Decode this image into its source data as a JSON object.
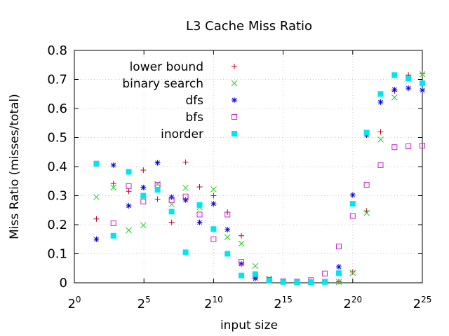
{
  "chart_data": {
    "type": "scatter",
    "title": "L3 Cache Miss Ratio",
    "xlabel": "input size",
    "ylabel": "Miss Ratio (misses/total)",
    "x_scale": "log2",
    "x_ticks": [
      {
        "base": "2",
        "exp": "0"
      },
      {
        "base": "2",
        "exp": "5"
      },
      {
        "base": "2",
        "exp": "10"
      },
      {
        "base": "2",
        "exp": "15"
      },
      {
        "base": "2",
        "exp": "20"
      },
      {
        "base": "2",
        "exp": "25"
      }
    ],
    "y_ticks": [
      "0",
      "0.1",
      "0.2",
      "0.3",
      "0.4",
      "0.5",
      "0.6",
      "0.7",
      "0.8"
    ],
    "xlim": [
      1,
      33554432
    ],
    "ylim": [
      0,
      0.8
    ],
    "grid": true,
    "legend_position": "top-right",
    "series": [
      {
        "name": "lower bound",
        "color": "#c0001f",
        "marker": "plus",
        "points": [
          [
            3,
            0.22
          ],
          [
            7,
            0.342
          ],
          [
            15,
            0.315
          ],
          [
            31,
            0.388
          ],
          [
            63,
            0.288
          ],
          [
            127,
            0.208
          ],
          [
            255,
            0.415
          ],
          [
            511,
            0.33
          ],
          [
            1023,
            0.3
          ],
          [
            2047,
            0.243
          ],
          [
            4095,
            0.162
          ],
          [
            8191,
            0.015
          ],
          [
            16383,
            0.007
          ],
          [
            32767,
            0.004
          ],
          [
            65535,
            0.003
          ],
          [
            131071,
            0.003
          ],
          [
            262143,
            0.004
          ],
          [
            524287,
            0.004
          ],
          [
            1048575,
            0.037
          ],
          [
            2097151,
            0.247
          ],
          [
            4194303,
            0.52
          ],
          [
            8388607,
            0.66
          ],
          [
            16777215,
            0.715
          ],
          [
            33554431,
            0.72
          ]
        ]
      },
      {
        "name": "binary search",
        "color": "#22cc22",
        "marker": "x",
        "points": [
          [
            3,
            0.295
          ],
          [
            7,
            0.328
          ],
          [
            15,
            0.181
          ],
          [
            31,
            0.198
          ],
          [
            63,
            0.34
          ],
          [
            127,
            0.27
          ],
          [
            255,
            0.327
          ],
          [
            511,
            0.26
          ],
          [
            1023,
            0.322
          ],
          [
            2047,
            0.157
          ],
          [
            4095,
            0.135
          ],
          [
            8191,
            0.058
          ],
          [
            16383,
            0.015
          ],
          [
            32767,
            0.005
          ],
          [
            65535,
            0.003
          ],
          [
            131071,
            0.003
          ],
          [
            262143,
            0.004
          ],
          [
            524287,
            0.003
          ],
          [
            1048575,
            0.034
          ],
          [
            2097151,
            0.24
          ],
          [
            4194303,
            0.493
          ],
          [
            8388607,
            0.638
          ],
          [
            16777215,
            0.707
          ],
          [
            33554431,
            0.718
          ]
        ]
      },
      {
        "name": "dfs",
        "color": "#0000dd",
        "marker": "star",
        "points": [
          [
            3,
            0.15
          ],
          [
            7,
            0.405
          ],
          [
            15,
            0.265
          ],
          [
            31,
            0.328
          ],
          [
            63,
            0.413
          ],
          [
            127,
            0.295
          ],
          [
            255,
            0.285
          ],
          [
            511,
            0.208
          ],
          [
            1023,
            0.272
          ],
          [
            2047,
            0.183
          ],
          [
            4095,
            0.065
          ],
          [
            8191,
            0.015
          ],
          [
            16383,
            0.008
          ],
          [
            32767,
            0.004
          ],
          [
            65535,
            0.003
          ],
          [
            131071,
            0.003
          ],
          [
            262143,
            0.004
          ],
          [
            524287,
            0.055
          ],
          [
            1048575,
            0.302
          ],
          [
            2097151,
            0.508
          ],
          [
            4194303,
            0.622
          ],
          [
            8388607,
            0.665
          ],
          [
            16777215,
            0.67
          ],
          [
            33554431,
            0.663
          ]
        ]
      },
      {
        "name": "bfs",
        "color": "#cc22cc",
        "marker": "open-square",
        "points": [
          [
            3,
            0.41
          ],
          [
            7,
            0.205
          ],
          [
            15,
            0.333
          ],
          [
            31,
            0.28
          ],
          [
            63,
            0.337
          ],
          [
            127,
            0.285
          ],
          [
            255,
            0.297
          ],
          [
            511,
            0.235
          ],
          [
            1023,
            0.15
          ],
          [
            2047,
            0.235
          ],
          [
            4095,
            0.072
          ],
          [
            8191,
            0.025
          ],
          [
            16383,
            0.01
          ],
          [
            32767,
            0.005
          ],
          [
            65535,
            0.004
          ],
          [
            131071,
            0.009
          ],
          [
            262143,
            0.032
          ],
          [
            524287,
            0.125
          ],
          [
            1048575,
            0.23
          ],
          [
            2097151,
            0.337
          ],
          [
            4194303,
            0.405
          ],
          [
            8388607,
            0.467
          ],
          [
            16777215,
            0.47
          ],
          [
            33554431,
            0.472
          ]
        ]
      },
      {
        "name": "inorder",
        "color": "#00e5ee",
        "marker": "filled-square",
        "points": [
          [
            3,
            0.41
          ],
          [
            7,
            0.162
          ],
          [
            15,
            0.382
          ],
          [
            31,
            0.3
          ],
          [
            63,
            0.32
          ],
          [
            127,
            0.245
          ],
          [
            255,
            0.105
          ],
          [
            511,
            0.268
          ],
          [
            1023,
            0.185
          ],
          [
            2047,
            0.1
          ],
          [
            4095,
            0.025
          ],
          [
            8191,
            0.03
          ],
          [
            16383,
            0.007
          ],
          [
            32767,
            0.003
          ],
          [
            65535,
            0.002
          ],
          [
            131071,
            0.002
          ],
          [
            262143,
            0.003
          ],
          [
            524287,
            0.033
          ],
          [
            1048575,
            0.272
          ],
          [
            2097151,
            0.517
          ],
          [
            4194303,
            0.65
          ],
          [
            8388607,
            0.715
          ],
          [
            16777215,
            0.703
          ],
          [
            33554431,
            0.687
          ]
        ]
      }
    ]
  }
}
